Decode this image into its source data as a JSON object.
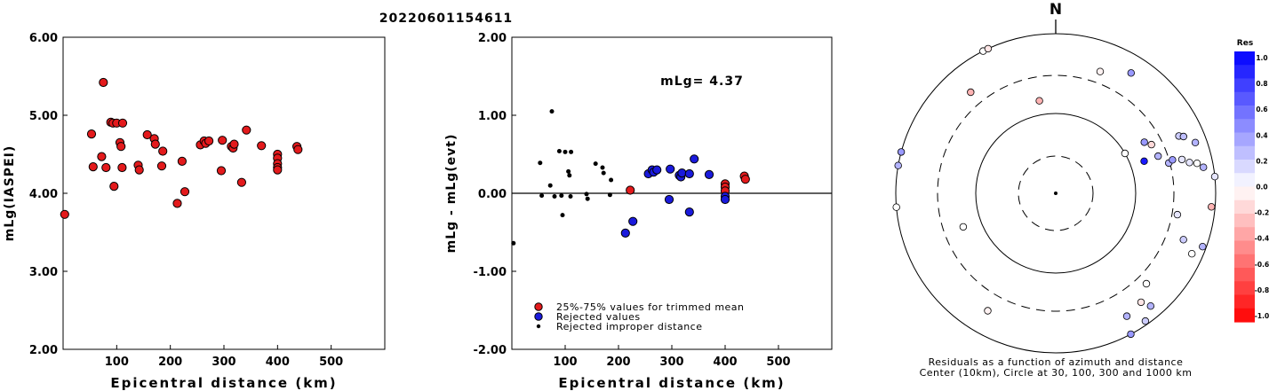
{
  "figure_title": "20220601154611",
  "chart_data": [
    {
      "type": "scatter",
      "title": "",
      "xlabel": "Epicentral distance (km)",
      "ylabel": "mLg(IASPEI)",
      "xlim": [
        0,
        600
      ],
      "ylim": [
        2.0,
        6.0
      ],
      "x_ticks": [
        "100",
        "200",
        "300",
        "400",
        "500"
      ],
      "y_ticks": [
        "2.00",
        "3.00",
        "4.00",
        "5.00",
        "6.00"
      ],
      "grid": false,
      "series": [
        {
          "color": "#e31a1c",
          "points": [
            [
              3,
              3.73
            ],
            [
              53,
              4.76
            ],
            [
              56,
              4.34
            ],
            [
              72,
              4.47
            ],
            [
              75,
              5.42
            ],
            [
              80,
              4.33
            ],
            [
              89,
              4.91
            ],
            [
              93,
              4.9
            ],
            [
              95,
              4.09
            ],
            [
              100,
              4.9
            ],
            [
              106,
              4.65
            ],
            [
              108,
              4.6
            ],
            [
              110,
              4.33
            ],
            [
              111,
              4.9
            ],
            [
              140,
              4.36
            ],
            [
              142,
              4.3
            ],
            [
              157,
              4.75
            ],
            [
              170,
              4.7
            ],
            [
              172,
              4.63
            ],
            [
              184,
              4.35
            ],
            [
              186,
              4.54
            ],
            [
              213,
              3.87
            ],
            [
              222,
              4.41
            ],
            [
              227,
              4.02
            ],
            [
              256,
              4.62
            ],
            [
              263,
              4.67
            ],
            [
              266,
              4.64
            ],
            [
              272,
              4.67
            ],
            [
              295,
              4.29
            ],
            [
              297,
              4.68
            ],
            [
              314,
              4.6
            ],
            [
              317,
              4.58
            ],
            [
              319,
              4.63
            ],
            [
              333,
              4.14
            ],
            [
              342,
              4.81
            ],
            [
              370,
              4.61
            ],
            [
              400,
              4.5
            ],
            [
              400,
              4.45
            ],
            [
              400,
              4.38
            ],
            [
              400,
              4.33
            ],
            [
              400,
              4.3
            ],
            [
              436,
              4.6
            ],
            [
              438,
              4.56
            ]
          ]
        }
      ]
    },
    {
      "type": "scatter",
      "title": "",
      "xlabel": "Epicentral distance (km)",
      "ylabel": "mLg - mLg(evt)",
      "xlim": [
        0,
        600
      ],
      "ylim": [
        -2.0,
        2.0
      ],
      "x_ticks": [
        "100",
        "200",
        "300",
        "400",
        "500"
      ],
      "y_ticks": [
        "-2.00",
        "-1.00",
        "0.00",
        "1.00",
        "2.00"
      ],
      "grid": false,
      "zero_line": true,
      "annotation": "mLg= 4.37",
      "legend": {
        "placement": "bottom-left",
        "entries": [
          {
            "label": "25%-75% values for trimmed mean",
            "color": "#e31a1c",
            "marker": "large"
          },
          {
            "label": "Rejected values",
            "color": "#1a1adc",
            "marker": "large"
          },
          {
            "label": "Rejected improper distance",
            "color": "#000000",
            "marker": "small"
          }
        ]
      },
      "series": [
        {
          "label": "25%-75% values for trimmed mean",
          "color": "#e31a1c",
          "points": [
            [
              222,
              0.04
            ],
            [
              400,
              0.12
            ],
            [
              400,
              0.08
            ],
            [
              400,
              0.03
            ],
            [
              436,
              0.22
            ],
            [
              438,
              0.18
            ]
          ]
        },
        {
          "label": "Rejected values",
          "color": "#1a1adc",
          "points": [
            [
              213,
              -0.51
            ],
            [
              227,
              -0.36
            ],
            [
              256,
              0.25
            ],
            [
              263,
              0.3
            ],
            [
              266,
              0.27
            ],
            [
              272,
              0.3
            ],
            [
              295,
              -0.08
            ],
            [
              297,
              0.31
            ],
            [
              314,
              0.23
            ],
            [
              317,
              0.21
            ],
            [
              319,
              0.26
            ],
            [
              333,
              -0.24
            ],
            [
              333,
              0.25
            ],
            [
              342,
              0.44
            ],
            [
              370,
              0.24
            ],
            [
              400,
              -0.04
            ],
            [
              400,
              -0.08
            ]
          ]
        },
        {
          "label": "Rejected improper distance",
          "color": "#000000",
          "points": [
            [
              3,
              -0.64
            ],
            [
              53,
              0.39
            ],
            [
              56,
              -0.03
            ],
            [
              72,
              0.1
            ],
            [
              75,
              1.05
            ],
            [
              80,
              -0.04
            ],
            [
              89,
              0.54
            ],
            [
              93,
              -0.03
            ],
            [
              95,
              -0.28
            ],
            [
              100,
              0.53
            ],
            [
              106,
              0.28
            ],
            [
              108,
              0.23
            ],
            [
              110,
              -0.04
            ],
            [
              111,
              0.53
            ],
            [
              140,
              -0.01
            ],
            [
              142,
              -0.07
            ],
            [
              157,
              0.38
            ],
            [
              170,
              0.33
            ],
            [
              172,
              0.26
            ],
            [
              184,
              -0.02
            ],
            [
              186,
              0.17
            ]
          ]
        }
      ]
    },
    {
      "type": "scatter",
      "subtype": "polar",
      "north_label": "N",
      "caption_line1": "Residuals as a function of azimuth and distance",
      "caption_line2": "Center (10km), Circle at 30, 100, 300 and 1000 km",
      "rings_km": [
        30,
        100,
        300,
        1000
      ],
      "rings_dashed": [
        true,
        false,
        true,
        false
      ],
      "colorbar": {
        "title": "Res",
        "range": [
          -1.0,
          1.0
        ],
        "tick_labels": [
          "1.0",
          "0.8",
          "0.6",
          "0.4",
          "0.2",
          "0.0",
          "-0.2",
          "-0.4",
          "-0.6",
          "-0.8",
          "-1.0"
        ],
        "positive_color": "#0000ff",
        "negative_color": "#ff0000"
      },
      "points": [
        {
          "az": 333,
          "dist_km": 1000,
          "res": 0.0
        },
        {
          "az": 335,
          "dist_km": 1000,
          "res": -0.1
        },
        {
          "az": 320,
          "dist_km": 450,
          "res": -0.3
        },
        {
          "az": 350,
          "dist_km": 150,
          "res": -0.3
        },
        {
          "az": 20,
          "dist_km": 420,
          "res": -0.05
        },
        {
          "az": 32,
          "dist_km": 600,
          "res": 0.4
        },
        {
          "az": 60,
          "dist_km": 100,
          "res": 0.0
        },
        {
          "az": 60,
          "dist_km": 190,
          "res": 0.4
        },
        {
          "az": 63,
          "dist_km": 220,
          "res": -0.15
        },
        {
          "az": 70,
          "dist_km": 150,
          "res": 0.9
        },
        {
          "az": 70,
          "dist_km": 230,
          "res": 0.3
        },
        {
          "az": 75,
          "dist_km": 290,
          "res": 0.3
        },
        {
          "az": 74,
          "dist_km": 330,
          "res": 0.4
        },
        {
          "az": 65,
          "dist_km": 500,
          "res": 0.2
        },
        {
          "az": 66,
          "dist_km": 560,
          "res": 0.25
        },
        {
          "az": 70,
          "dist_km": 720,
          "res": 0.3
        },
        {
          "az": 75,
          "dist_km": 430,
          "res": 0.1
        },
        {
          "az": 77,
          "dist_km": 520,
          "res": 0.1
        },
        {
          "az": 78,
          "dist_km": 640,
          "res": 0.0
        },
        {
          "az": 80,
          "dist_km": 750,
          "res": 0.3
        },
        {
          "az": 84,
          "dist_km": 1000,
          "res": 0.1
        },
        {
          "az": 95,
          "dist_km": 900,
          "res": -0.3
        },
        {
          "az": 100,
          "dist_km": 350,
          "res": 0.1
        },
        {
          "az": 110,
          "dist_km": 500,
          "res": 0.2
        },
        {
          "az": 110,
          "dist_km": 900,
          "res": 0.3
        },
        {
          "az": 114,
          "dist_km": 730,
          "res": 0.0
        },
        {
          "az": 135,
          "dist_km": 400,
          "res": 0.0
        },
        {
          "az": 142,
          "dist_km": 540,
          "res": -0.1
        },
        {
          "az": 140,
          "dist_km": 700,
          "res": 0.3
        },
        {
          "az": 145,
          "dist_km": 900,
          "res": 0.2
        },
        {
          "az": 150,
          "dist_km": 600,
          "res": 0.3
        },
        {
          "az": 152,
          "dist_km": 1000,
          "res": 0.4
        },
        {
          "az": 210,
          "dist_km": 500,
          "res": -0.05
        },
        {
          "az": 250,
          "dist_km": 170,
          "res": 0.0
        },
        {
          "az": 265,
          "dist_km": 1000,
          "res": 0.0
        },
        {
          "az": 280,
          "dist_km": 1000,
          "res": 0.3
        },
        {
          "az": 285,
          "dist_km": 1000,
          "res": 0.4
        }
      ]
    }
  ]
}
